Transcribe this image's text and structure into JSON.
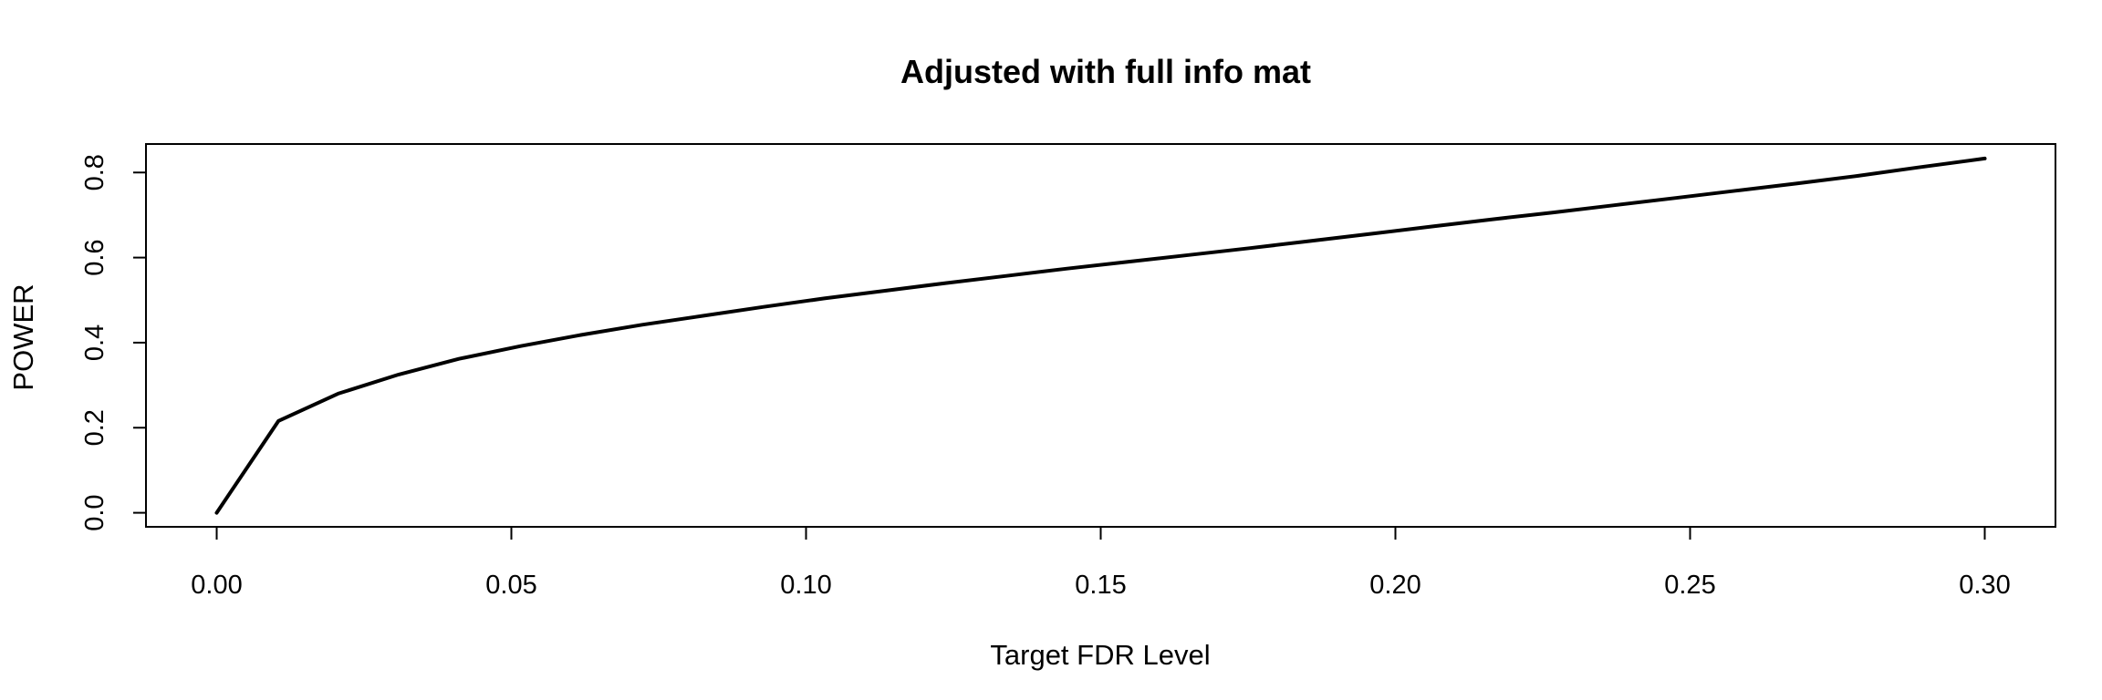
{
  "chart_data": {
    "type": "line",
    "title": "Adjusted with full info mat",
    "xlabel": "Target FDR Level",
    "ylabel": "POWER",
    "xlim": [
      -0.012,
      0.312
    ],
    "ylim": [
      -0.033,
      0.867
    ],
    "xticks": [
      0.0,
      0.05,
      0.1,
      0.15,
      0.2,
      0.25,
      0.3
    ],
    "xtick_labels": [
      "0.00",
      "0.05",
      "0.10",
      "0.15",
      "0.20",
      "0.25",
      "0.30"
    ],
    "yticks": [
      0.0,
      0.2,
      0.4,
      0.6,
      0.8
    ],
    "ytick_labels": [
      "0.0",
      "0.2",
      "0.4",
      "0.6",
      "0.8"
    ],
    "grid": false,
    "legend": "none",
    "line_color": "#000000",
    "series": [
      {
        "x": [
          0.0,
          0.0105,
          0.0206,
          0.0309,
          0.0411,
          0.0516,
          0.0618,
          0.0722,
          0.0825,
          0.0928,
          0.1031,
          0.1134,
          0.1237,
          0.134,
          0.1443,
          0.1546,
          0.1649,
          0.1752,
          0.1856,
          0.1959,
          0.2062,
          0.2165,
          0.2268,
          0.2371,
          0.2474,
          0.2577,
          0.268,
          0.2784,
          0.2887,
          0.3
        ],
        "y": [
          0.0,
          0.216,
          0.28,
          0.325,
          0.362,
          0.392,
          0.418,
          0.442,
          0.463,
          0.484,
          0.504,
          0.522,
          0.54,
          0.557,
          0.574,
          0.59,
          0.606,
          0.622,
          0.639,
          0.656,
          0.673,
          0.69,
          0.706,
          0.723,
          0.74,
          0.757,
          0.774,
          0.792,
          0.812,
          0.833
        ]
      }
    ]
  }
}
